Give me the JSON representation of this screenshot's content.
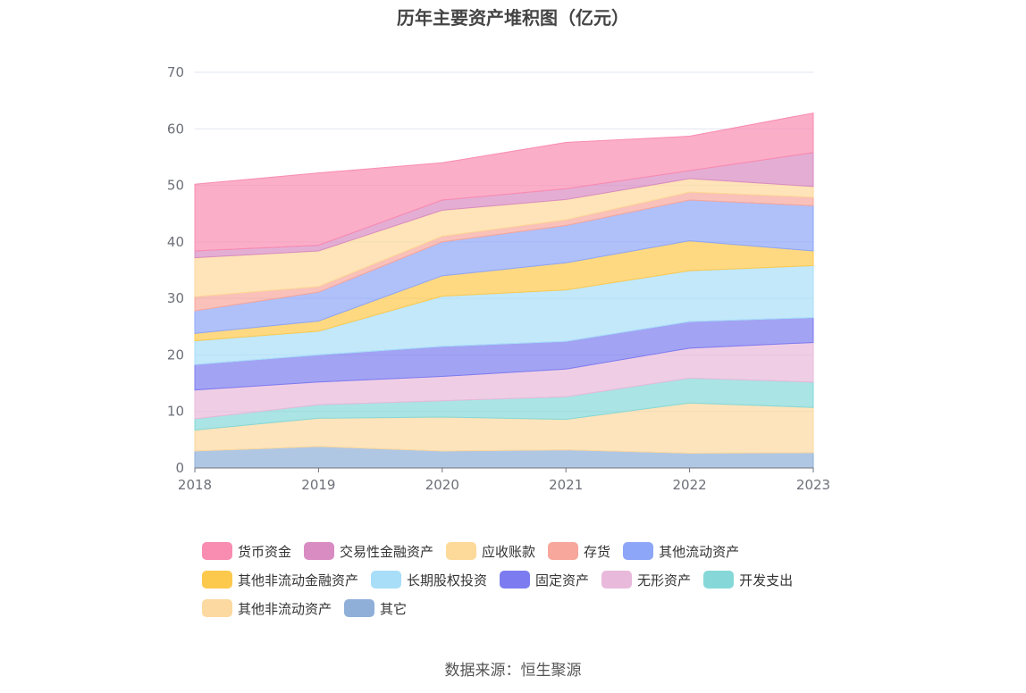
{
  "chart_data": {
    "type": "area",
    "stacked": true,
    "title": "历年主要资产堆积图（亿元）",
    "xlabel": "",
    "ylabel": "",
    "x": [
      "2018",
      "2019",
      "2020",
      "2021",
      "2022",
      "2023"
    ],
    "ylim": [
      0,
      70
    ],
    "yticks": [
      0,
      10,
      20,
      30,
      40,
      50,
      60,
      70
    ],
    "grid": true,
    "legend_position": "bottom",
    "series": [
      {
        "name": "其它",
        "color": "#8fafd9",
        "values": [
          3.0,
          3.8,
          3.0,
          3.2,
          2.6,
          2.7
        ]
      },
      {
        "name": "其他非流动资产",
        "color": "#fcd9a0",
        "values": [
          3.7,
          5.0,
          6.0,
          5.4,
          8.9,
          8.0
        ]
      },
      {
        "name": "开发支出",
        "color": "#86d8d8",
        "values": [
          2.0,
          2.4,
          2.9,
          4.0,
          4.4,
          4.5
        ]
      },
      {
        "name": "无形资产",
        "color": "#e8b9da",
        "values": [
          5.1,
          4.0,
          4.3,
          4.9,
          5.3,
          7.0
        ]
      },
      {
        "name": "固定资产",
        "color": "#7c7cf0",
        "values": [
          4.5,
          4.8,
          5.3,
          4.9,
          4.7,
          4.4
        ]
      },
      {
        "name": "长期股权投资",
        "color": "#a8def8",
        "values": [
          4.2,
          4.2,
          8.9,
          9.1,
          9.0,
          9.2
        ]
      },
      {
        "name": "其他非流动金融资产",
        "color": "#fdc94d",
        "values": [
          1.3,
          1.8,
          3.6,
          4.8,
          5.3,
          2.6
        ]
      },
      {
        "name": "其他流动资产",
        "color": "#8ea6f8",
        "values": [
          4.0,
          5.1,
          6.0,
          6.6,
          7.2,
          8.0
        ]
      },
      {
        "name": "存货",
        "color": "#f7a79b",
        "values": [
          2.5,
          1.0,
          1.0,
          1.0,
          1.4,
          1.5
        ]
      },
      {
        "name": "应收账款",
        "color": "#fdd99a",
        "values": [
          6.9,
          6.3,
          4.6,
          3.6,
          2.4,
          1.9
        ]
      },
      {
        "name": "交易性金融资产",
        "color": "#d98cc2",
        "values": [
          1.2,
          1.0,
          1.8,
          1.9,
          1.4,
          6.0
        ]
      },
      {
        "name": "货币资金",
        "color": "#f98cb1",
        "values": [
          11.8,
          12.8,
          6.6,
          8.2,
          6.1,
          7.0
        ]
      }
    ],
    "legend_order": [
      "货币资金",
      "交易性金融资产",
      "应收账款",
      "存货",
      "其他流动资产",
      "其他非流动金融资产",
      "长期股权投资",
      "固定资产",
      "无形资产",
      "开发支出",
      "其他非流动资产",
      "其它"
    ]
  },
  "source": "数据来源：恒生聚源",
  "axis_color": "#6e7079",
  "grid_color": "#e0e6f1",
  "tick_label_color": "#6e7079"
}
